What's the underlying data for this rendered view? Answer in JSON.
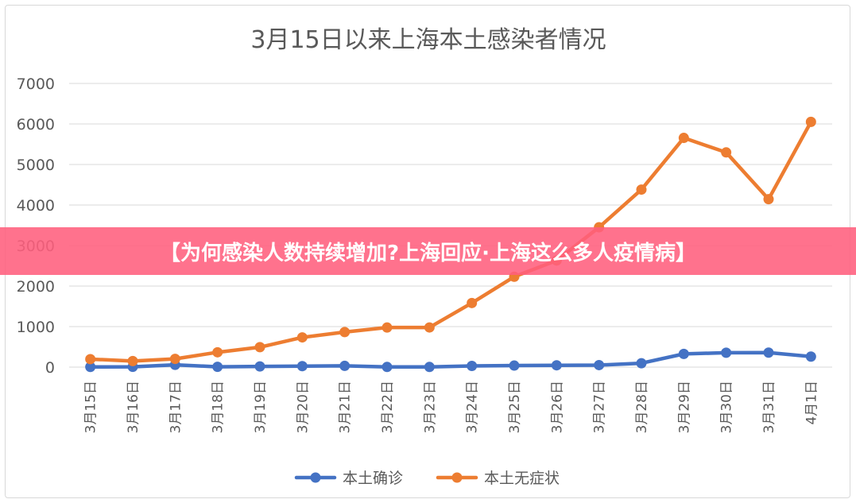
{
  "banner": {
    "text": "【为何感染人数持续增加?上海回应·上海这么多人疫情病】"
  },
  "chart_data": {
    "type": "line",
    "title": "3月15日以来上海本土感染者情况",
    "x": [
      "3月15日",
      "3月16日",
      "3月17日",
      "3月18日",
      "3月19日",
      "3月20日",
      "3月21日",
      "3月22日",
      "3月23日",
      "3月24日",
      "3月25日",
      "3月26日",
      "3月27日",
      "3月28日",
      "3月29日",
      "3月30日",
      "3月31日",
      "4月1日"
    ],
    "ylim": [
      0,
      7000
    ],
    "yticks": [
      0,
      1000,
      2000,
      3000,
      4000,
      5000,
      6000,
      7000
    ],
    "grid": true,
    "legend_position": "bottom",
    "series": [
      {
        "name": "本土确诊",
        "color": "#4472c4",
        "values": [
          5,
          8,
          57,
          8,
          17,
          24,
          31,
          4,
          4,
          29,
          38,
          45,
          50,
          96,
          326,
          355,
          358,
          260
        ]
      },
      {
        "name": "本土无症状",
        "color": "#ed7d31",
        "values": [
          197,
          150,
          203,
          366,
          492,
          734,
          865,
          977,
          979,
          1582,
          2231,
          2631,
          3450,
          4381,
          5656,
          5298,
          4144,
          6051
        ]
      }
    ]
  }
}
